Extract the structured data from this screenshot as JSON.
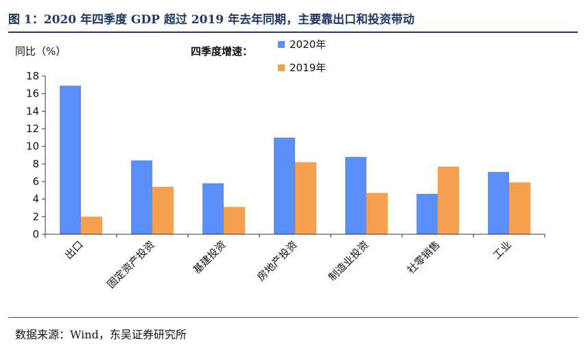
{
  "title": "图 1：2020 年四季度 GDP 超过 2019 年去年同期，主要靠出口和投资带动",
  "source": "数据来源：Wind，东吴证券研究所",
  "chart_data": {
    "type": "bar",
    "ylabel": "同比（%）",
    "legend_title": "四季度增速：",
    "legend_position": "top",
    "categories": [
      "出口",
      "固定资产投资",
      "基建投资",
      "房地产投资",
      "制造业投资",
      "社零销售",
      "工业"
    ],
    "series": [
      {
        "name": "2020年",
        "color": "#5b8ff9",
        "values": [
          16.9,
          8.4,
          5.8,
          11.0,
          8.8,
          4.6,
          7.1
        ]
      },
      {
        "name": "2019年",
        "color": "#f5a050",
        "values": [
          2.0,
          5.4,
          3.1,
          8.2,
          4.7,
          7.7,
          5.9
        ]
      }
    ],
    "ylim": [
      0,
      18
    ],
    "yticks": [
      0,
      2,
      4,
      6,
      8,
      10,
      12,
      14,
      16,
      18
    ],
    "grid": false
  }
}
